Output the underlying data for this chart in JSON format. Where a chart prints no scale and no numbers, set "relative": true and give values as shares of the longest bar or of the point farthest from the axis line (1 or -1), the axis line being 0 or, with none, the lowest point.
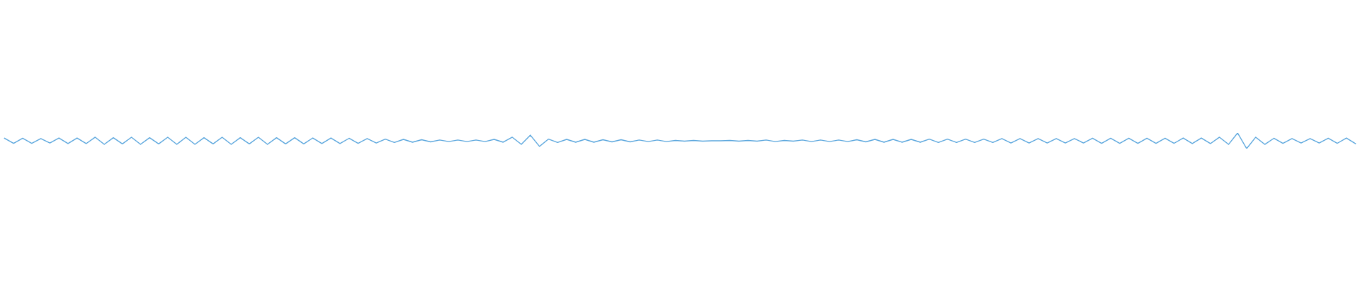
{
  "chart_data": {
    "type": "line",
    "relative": true,
    "grid": false,
    "legend": false,
    "categories": [
      null,
      null,
      null,
      null,
      null,
      null,
      null,
      null,
      null,
      null,
      null,
      null,
      null,
      null,
      null,
      null,
      null,
      null,
      null,
      null,
      null,
      null,
      null,
      null,
      null,
      null,
      null,
      null,
      null,
      null,
      null,
      null,
      null,
      null,
      null,
      null,
      null,
      null,
      null,
      null,
      null,
      null,
      null,
      null,
      null,
      null,
      null,
      null,
      null,
      null,
      null,
      null,
      null,
      null,
      null,
      null,
      null,
      null,
      null,
      null,
      null,
      null,
      null,
      null,
      null,
      null,
      null,
      null,
      null,
      null,
      null,
      null,
      null,
      null,
      null,
      null,
      null,
      null,
      null,
      null,
      null,
      null,
      null,
      null,
      null,
      null,
      null,
      null,
      null,
      null,
      null,
      null,
      null,
      null,
      null,
      null,
      null,
      null,
      null,
      null,
      null,
      null,
      null,
      null,
      null,
      null,
      null,
      null,
      null,
      null,
      null,
      null,
      null,
      null,
      null,
      null,
      null,
      null,
      null,
      null,
      null,
      null,
      null,
      null,
      null,
      null,
      null,
      null,
      null,
      null,
      null,
      null,
      null,
      null,
      null,
      null,
      null,
      null,
      null,
      null,
      null,
      null,
      null,
      null,
      null,
      null,
      null,
      null,
      null,
      null
    ],
    "series": [
      {
        "color": "#5aa6dd",
        "values": [
          0.66,
          0.34,
          0.66,
          0.34,
          0.64,
          0.36,
          0.68,
          0.32,
          0.68,
          0.32,
          0.73,
          0.27,
          0.7,
          0.3,
          0.73,
          0.27,
          0.7,
          0.3,
          0.73,
          0.27,
          0.73,
          0.27,
          0.7,
          0.3,
          0.73,
          0.27,
          0.7,
          0.3,
          0.73,
          0.27,
          0.7,
          0.3,
          0.7,
          0.3,
          0.68,
          0.32,
          0.68,
          0.32,
          0.66,
          0.34,
          0.64,
          0.36,
          0.61,
          0.39,
          0.59,
          0.41,
          0.57,
          0.43,
          0.55,
          0.45,
          0.55,
          0.45,
          0.55,
          0.45,
          0.59,
          0.41,
          0.73,
          0.27,
          0.86,
          0.14,
          0.61,
          0.39,
          0.59,
          0.41,
          0.59,
          0.41,
          0.57,
          0.43,
          0.57,
          0.43,
          0.55,
          0.45,
          0.55,
          0.45,
          0.52,
          0.48,
          0.52,
          0.48,
          0.5,
          0.5,
          0.52,
          0.48,
          0.52,
          0.48,
          0.55,
          0.45,
          0.52,
          0.48,
          0.55,
          0.45,
          0.55,
          0.45,
          0.55,
          0.45,
          0.57,
          0.43,
          0.59,
          0.41,
          0.59,
          0.41,
          0.59,
          0.41,
          0.61,
          0.39,
          0.61,
          0.39,
          0.61,
          0.39,
          0.61,
          0.39,
          0.64,
          0.36,
          0.64,
          0.36,
          0.64,
          0.36,
          0.64,
          0.36,
          0.64,
          0.36,
          0.66,
          0.34,
          0.66,
          0.34,
          0.66,
          0.34,
          0.66,
          0.34,
          0.66,
          0.34,
          0.68,
          0.32,
          0.68,
          0.32,
          0.73,
          0.27,
          1,
          0,
          0.73,
          0.27,
          0.66,
          0.34,
          0.64,
          0.36,
          0.64,
          0.36,
          0.66,
          0.34,
          0.68,
          0.32
        ]
      }
    ]
  }
}
